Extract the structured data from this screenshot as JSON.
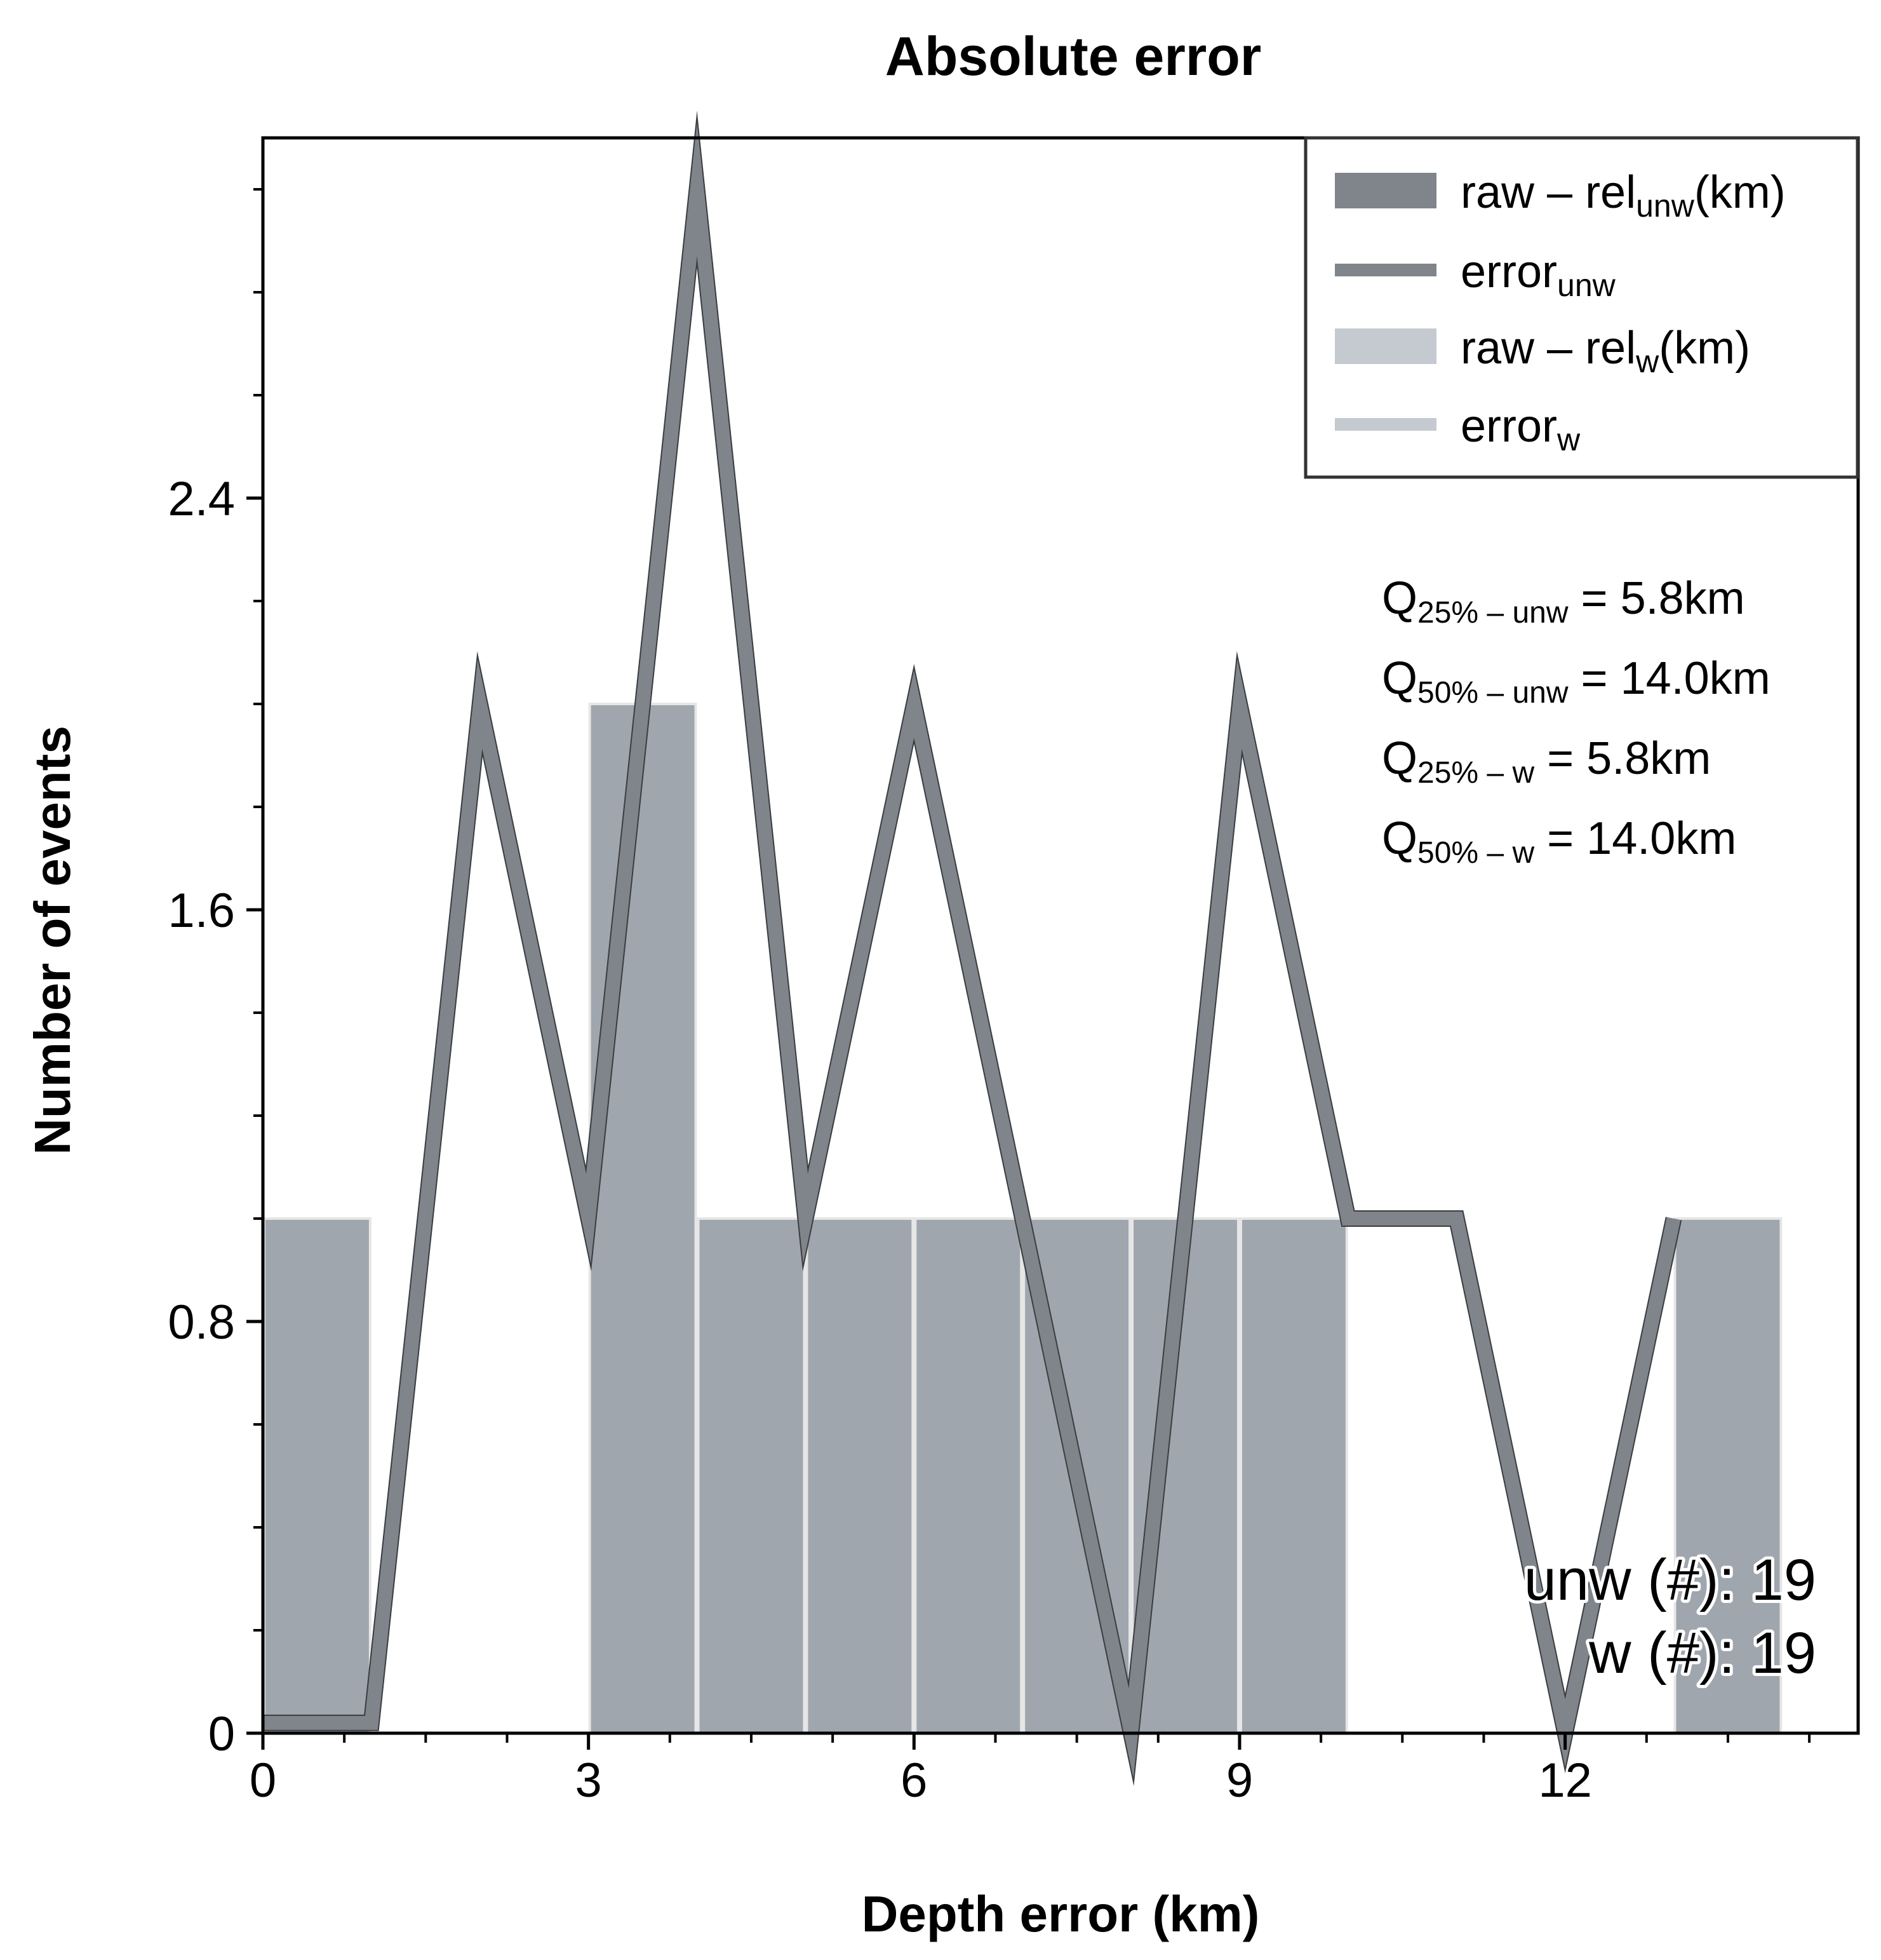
{
  "chart_data": {
    "type": "bar",
    "title": "Absolute error",
    "xlabel": "Depth error (km)",
    "ylabel": "Number of events",
    "xlim": [
      0,
      14.7
    ],
    "ylim": [
      0,
      3.1
    ],
    "x_ticks": [
      0,
      3,
      6,
      9,
      12
    ],
    "x_tick_labels": [
      "0",
      "3",
      "6",
      "9",
      "12"
    ],
    "y_ticks": [
      0,
      0.8,
      1.6,
      2.4
    ],
    "y_tick_labels": [
      "0",
      "0.8",
      "1.6",
      "2.4"
    ],
    "grid": false,
    "legend_position": "top-right",
    "colors": {
      "unweighted": "#7f858a",
      "weighted": "#c5cad1",
      "bar_overlap": "#a0a6ae",
      "bar_edge": "#e6e6e6",
      "axis": "#000000"
    },
    "legend": [
      {
        "main": "raw – rel",
        "sub": "unw",
        "suffix": "(km)",
        "kind": "patch",
        "color": "#7f858a"
      },
      {
        "main": "error",
        "sub": "unw",
        "suffix": "",
        "kind": "line",
        "color": "#7f858a"
      },
      {
        "main": "raw – rel",
        "sub": "w",
        "suffix": "(km)",
        "kind": "patch",
        "color": "#c5cad1"
      },
      {
        "main": "error",
        "sub": "w",
        "suffix": "",
        "kind": "line",
        "color": "#c5cad1"
      }
    ],
    "histogram": {
      "bin_edges": [
        0,
        1,
        2,
        3,
        4,
        5,
        6,
        7,
        8,
        9,
        10,
        11,
        12,
        13,
        14
      ],
      "unweighted_counts": [
        1,
        0,
        0,
        2,
        1,
        1,
        1,
        1,
        1,
        1,
        0,
        0,
        0,
        1
      ],
      "weighted_counts": [
        1,
        0,
        0,
        2,
        1,
        1,
        1,
        1,
        1,
        1,
        0,
        0,
        0,
        1
      ]
    },
    "series": [
      {
        "name": "error",
        "x": [
          0,
          1,
          2,
          3,
          4,
          5,
          6,
          7,
          8,
          9,
          10,
          11,
          12,
          13
        ],
        "values": [
          0.02,
          0.02,
          2.0,
          1.0,
          3.0,
          1.0,
          2.0,
          1.0,
          0.0,
          2.0,
          1.0,
          1.0,
          0.0,
          1.0
        ]
      }
    ],
    "annotations": {
      "quantiles": [
        {
          "sub": "25% – unw",
          "value": "5.8km"
        },
        {
          "sub": "50% – unw",
          "value": "14.0km"
        },
        {
          "sub": "25% – w",
          "value": "5.8km"
        },
        {
          "sub": "50% – w",
          "value": "14.0km"
        }
      ],
      "counts": [
        "unw (#): 19",
        "w (#): 19"
      ]
    }
  }
}
